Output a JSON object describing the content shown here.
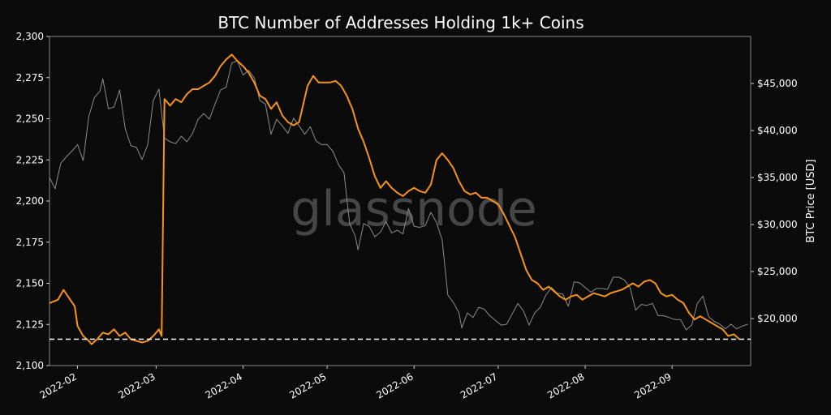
{
  "chart_data": {
    "type": "line",
    "title": "BTC Number of Addresses Holding 1k+ Coins",
    "watermark": "glassnode",
    "x_ticks": [
      "2022-02",
      "2022-03",
      "2022-04",
      "2022-05",
      "2022-06",
      "2022-07",
      "2022-08",
      "2022-09"
    ],
    "x_range": [
      "2022-01-22",
      "2022-09-29"
    ],
    "y_left": {
      "label": "",
      "range": [
        2100,
        2300
      ],
      "ticks": [
        "2,100",
        "2,125",
        "2,150",
        "2,175",
        "2,200",
        "2,225",
        "2,250",
        "2,275",
        "2,300"
      ]
    },
    "y_right": {
      "label": "BTC Price [USD]",
      "range": [
        15000,
        50000
      ],
      "ticks": [
        "$20,000",
        "$25,000",
        "$30,000",
        "$35,000",
        "$40,000",
        "$45,000"
      ],
      "tick_values": [
        20000,
        25000,
        30000,
        35000,
        40000,
        45000
      ]
    },
    "reference_line": {
      "value": 2116,
      "style": "dashed",
      "axis": "left"
    },
    "grid": false,
    "series": [
      {
        "axis": "left",
        "color": "#f7931a",
        "points": [
          [
            "2022-01-22",
            2138
          ],
          [
            "2022-01-25",
            2140
          ],
          [
            "2022-01-27",
            2146
          ],
          [
            "2022-01-29",
            2141
          ],
          [
            "2022-01-31",
            2136
          ],
          [
            "2022-02-01",
            2124
          ],
          [
            "2022-02-03",
            2118
          ],
          [
            "2022-02-05",
            2115
          ],
          [
            "2022-02-06",
            2113
          ],
          [
            "2022-02-08",
            2116
          ],
          [
            "2022-02-10",
            2120
          ],
          [
            "2022-02-12",
            2119
          ],
          [
            "2022-02-14",
            2122
          ],
          [
            "2022-02-16",
            2118
          ],
          [
            "2022-02-18",
            2120
          ],
          [
            "2022-02-20",
            2116
          ],
          [
            "2022-02-22",
            2115
          ],
          [
            "2022-02-24",
            2114
          ],
          [
            "2022-02-26",
            2115
          ],
          [
            "2022-02-28",
            2118
          ],
          [
            "2022-03-02",
            2122
          ],
          [
            "2022-03-03",
            2118
          ],
          [
            "2022-03-04",
            2262
          ],
          [
            "2022-03-06",
            2258
          ],
          [
            "2022-03-08",
            2262
          ],
          [
            "2022-03-10",
            2260
          ],
          [
            "2022-03-12",
            2265
          ],
          [
            "2022-03-14",
            2268
          ],
          [
            "2022-03-16",
            2268
          ],
          [
            "2022-03-18",
            2270
          ],
          [
            "2022-03-20",
            2272
          ],
          [
            "2022-03-22",
            2276
          ],
          [
            "2022-03-24",
            2282
          ],
          [
            "2022-03-26",
            2286
          ],
          [
            "2022-03-28",
            2289
          ],
          [
            "2022-03-30",
            2285
          ],
          [
            "2022-04-01",
            2282
          ],
          [
            "2022-04-03",
            2278
          ],
          [
            "2022-04-05",
            2272
          ],
          [
            "2022-04-07",
            2264
          ],
          [
            "2022-04-09",
            2262
          ],
          [
            "2022-04-11",
            2256
          ],
          [
            "2022-04-13",
            2260
          ],
          [
            "2022-04-15",
            2252
          ],
          [
            "2022-04-17",
            2248
          ],
          [
            "2022-04-19",
            2246
          ],
          [
            "2022-04-21",
            2248
          ],
          [
            "2022-04-24",
            2270
          ],
          [
            "2022-04-26",
            2276
          ],
          [
            "2022-04-28",
            2272
          ],
          [
            "2022-04-30",
            2272
          ],
          [
            "2022-05-02",
            2272
          ],
          [
            "2022-05-04",
            2273
          ],
          [
            "2022-05-06",
            2270
          ],
          [
            "2022-05-08",
            2264
          ],
          [
            "2022-05-10",
            2256
          ],
          [
            "2022-05-12",
            2244
          ],
          [
            "2022-05-14",
            2236
          ],
          [
            "2022-05-16",
            2226
          ],
          [
            "2022-05-18",
            2215
          ],
          [
            "2022-05-20",
            2208
          ],
          [
            "2022-05-22",
            2212
          ],
          [
            "2022-05-24",
            2208
          ],
          [
            "2022-05-26",
            2205
          ],
          [
            "2022-05-28",
            2203
          ],
          [
            "2022-05-30",
            2206
          ],
          [
            "2022-06-01",
            2208
          ],
          [
            "2022-06-03",
            2206
          ],
          [
            "2022-06-05",
            2205
          ],
          [
            "2022-06-07",
            2210
          ],
          [
            "2022-06-09",
            2225
          ],
          [
            "2022-06-11",
            2229
          ],
          [
            "2022-06-13",
            2225
          ],
          [
            "2022-06-15",
            2220
          ],
          [
            "2022-06-17",
            2212
          ],
          [
            "2022-06-19",
            2206
          ],
          [
            "2022-06-21",
            2204
          ],
          [
            "2022-06-23",
            2205
          ],
          [
            "2022-06-25",
            2202
          ],
          [
            "2022-06-27",
            2202
          ],
          [
            "2022-06-29",
            2200
          ],
          [
            "2022-07-01",
            2198
          ],
          [
            "2022-07-03",
            2192
          ],
          [
            "2022-07-05",
            2185
          ],
          [
            "2022-07-07",
            2178
          ],
          [
            "2022-07-09",
            2168
          ],
          [
            "2022-07-11",
            2158
          ],
          [
            "2022-07-13",
            2152
          ],
          [
            "2022-07-15",
            2150
          ],
          [
            "2022-07-17",
            2146
          ],
          [
            "2022-07-19",
            2148
          ],
          [
            "2022-07-21",
            2145
          ],
          [
            "2022-07-23",
            2142
          ],
          [
            "2022-07-25",
            2140
          ],
          [
            "2022-07-27",
            2142
          ],
          [
            "2022-07-29",
            2143
          ],
          [
            "2022-07-31",
            2140
          ],
          [
            "2022-08-02",
            2142
          ],
          [
            "2022-08-04",
            2144
          ],
          [
            "2022-08-06",
            2143
          ],
          [
            "2022-08-08",
            2142
          ],
          [
            "2022-08-10",
            2144
          ],
          [
            "2022-08-12",
            2145
          ],
          [
            "2022-08-14",
            2146
          ],
          [
            "2022-08-16",
            2148
          ],
          [
            "2022-08-18",
            2150
          ],
          [
            "2022-08-20",
            2148
          ],
          [
            "2022-08-22",
            2151
          ],
          [
            "2022-08-24",
            2152
          ],
          [
            "2022-08-26",
            2150
          ],
          [
            "2022-08-28",
            2144
          ],
          [
            "2022-08-30",
            2142
          ],
          [
            "2022-09-01",
            2143
          ],
          [
            "2022-09-03",
            2140
          ],
          [
            "2022-09-05",
            2138
          ],
          [
            "2022-09-07",
            2132
          ],
          [
            "2022-09-09",
            2128
          ],
          [
            "2022-09-11",
            2130
          ],
          [
            "2022-09-13",
            2128
          ],
          [
            "2022-09-15",
            2126
          ],
          [
            "2022-09-17",
            2124
          ],
          [
            "2022-09-19",
            2122
          ],
          [
            "2022-09-21",
            2118
          ],
          [
            "2022-09-23",
            2119
          ],
          [
            "2022-09-25",
            2116
          ]
        ]
      },
      {
        "axis": "right",
        "name": "BTC Price [USD]",
        "color": "#8c8c8c",
        "points": [
          [
            "2022-01-22",
            35000
          ],
          [
            "2022-01-24",
            33800
          ],
          [
            "2022-01-26",
            36500
          ],
          [
            "2022-01-28",
            37200
          ],
          [
            "2022-01-30",
            37800
          ],
          [
            "2022-02-01",
            38500
          ],
          [
            "2022-02-03",
            36800
          ],
          [
            "2022-02-05",
            41500
          ],
          [
            "2022-02-07",
            43500
          ],
          [
            "2022-02-09",
            44200
          ],
          [
            "2022-02-10",
            45500
          ],
          [
            "2022-02-12",
            42300
          ],
          [
            "2022-02-14",
            42500
          ],
          [
            "2022-02-16",
            44300
          ],
          [
            "2022-02-18",
            40200
          ],
          [
            "2022-02-20",
            38400
          ],
          [
            "2022-02-22",
            38200
          ],
          [
            "2022-02-24",
            36900
          ],
          [
            "2022-02-26",
            38500
          ],
          [
            "2022-02-28",
            43200
          ],
          [
            "2022-03-02",
            44400
          ],
          [
            "2022-03-04",
            39200
          ],
          [
            "2022-03-06",
            38800
          ],
          [
            "2022-03-08",
            38600
          ],
          [
            "2022-03-10",
            39400
          ],
          [
            "2022-03-12",
            38800
          ],
          [
            "2022-03-14",
            39700
          ],
          [
            "2022-03-16",
            41200
          ],
          [
            "2022-03-18",
            41800
          ],
          [
            "2022-03-20",
            41200
          ],
          [
            "2022-03-22",
            42800
          ],
          [
            "2022-03-24",
            44300
          ],
          [
            "2022-03-26",
            44600
          ],
          [
            "2022-03-28",
            47200
          ],
          [
            "2022-03-30",
            47400
          ],
          [
            "2022-04-01",
            45900
          ],
          [
            "2022-04-03",
            46400
          ],
          [
            "2022-04-05",
            45600
          ],
          [
            "2022-04-07",
            43200
          ],
          [
            "2022-04-09",
            42800
          ],
          [
            "2022-04-11",
            39600
          ],
          [
            "2022-04-13",
            41200
          ],
          [
            "2022-04-15",
            40500
          ],
          [
            "2022-04-17",
            39700
          ],
          [
            "2022-04-19",
            41300
          ],
          [
            "2022-04-21",
            40500
          ],
          [
            "2022-04-23",
            39600
          ],
          [
            "2022-04-25",
            40400
          ],
          [
            "2022-04-27",
            38900
          ],
          [
            "2022-04-29",
            38500
          ],
          [
            "2022-05-01",
            38500
          ],
          [
            "2022-05-03",
            37800
          ],
          [
            "2022-05-05",
            36400
          ],
          [
            "2022-05-07",
            35500
          ],
          [
            "2022-05-09",
            30100
          ],
          [
            "2022-05-11",
            28800
          ],
          [
            "2022-05-12",
            27300
          ],
          [
            "2022-05-14",
            30100
          ],
          [
            "2022-05-16",
            29800
          ],
          [
            "2022-05-18",
            28700
          ],
          [
            "2022-05-20",
            29200
          ],
          [
            "2022-05-22",
            30300
          ],
          [
            "2022-05-24",
            29100
          ],
          [
            "2022-05-26",
            29400
          ],
          [
            "2022-05-28",
            29000
          ],
          [
            "2022-05-30",
            31700
          ],
          [
            "2022-06-01",
            29800
          ],
          [
            "2022-06-03",
            29700
          ],
          [
            "2022-06-05",
            29900
          ],
          [
            "2022-06-07",
            31300
          ],
          [
            "2022-06-09",
            30200
          ],
          [
            "2022-06-11",
            28400
          ],
          [
            "2022-06-13",
            22500
          ],
          [
            "2022-06-15",
            21700
          ],
          [
            "2022-06-17",
            20600
          ],
          [
            "2022-06-18",
            19000
          ],
          [
            "2022-06-20",
            20600
          ],
          [
            "2022-06-22",
            20100
          ],
          [
            "2022-06-24",
            21200
          ],
          [
            "2022-06-26",
            21000
          ],
          [
            "2022-06-28",
            20300
          ],
          [
            "2022-06-30",
            19800
          ],
          [
            "2022-07-02",
            19300
          ],
          [
            "2022-07-04",
            19400
          ],
          [
            "2022-07-06",
            20500
          ],
          [
            "2022-07-08",
            21600
          ],
          [
            "2022-07-10",
            20800
          ],
          [
            "2022-07-12",
            19300
          ],
          [
            "2022-07-14",
            20600
          ],
          [
            "2022-07-16",
            21200
          ],
          [
            "2022-07-18",
            22500
          ],
          [
            "2022-07-20",
            23300
          ],
          [
            "2022-07-22",
            22700
          ],
          [
            "2022-07-24",
            22600
          ],
          [
            "2022-07-26",
            21300
          ],
          [
            "2022-07-28",
            23900
          ],
          [
            "2022-07-30",
            23800
          ],
          [
            "2022-08-01",
            23300
          ],
          [
            "2022-08-03",
            22800
          ],
          [
            "2022-08-05",
            23200
          ],
          [
            "2022-08-07",
            23200
          ],
          [
            "2022-08-09",
            23100
          ],
          [
            "2022-08-11",
            24400
          ],
          [
            "2022-08-13",
            24400
          ],
          [
            "2022-08-15",
            24100
          ],
          [
            "2022-08-17",
            23300
          ],
          [
            "2022-08-19",
            20900
          ],
          [
            "2022-08-21",
            21500
          ],
          [
            "2022-08-23",
            21400
          ],
          [
            "2022-08-25",
            21600
          ],
          [
            "2022-08-27",
            20300
          ],
          [
            "2022-08-29",
            20300
          ],
          [
            "2022-08-31",
            20100
          ],
          [
            "2022-09-02",
            19900
          ],
          [
            "2022-09-04",
            19900
          ],
          [
            "2022-09-06",
            18800
          ],
          [
            "2022-09-08",
            19300
          ],
          [
            "2022-09-10",
            21600
          ],
          [
            "2022-09-12",
            22400
          ],
          [
            "2022-09-14",
            20200
          ],
          [
            "2022-09-16",
            19700
          ],
          [
            "2022-09-18",
            19400
          ],
          [
            "2022-09-20",
            18900
          ],
          [
            "2022-09-22",
            19400
          ],
          [
            "2022-09-24",
            18900
          ],
          [
            "2022-09-26",
            19200
          ],
          [
            "2022-09-28",
            19400
          ]
        ]
      }
    ]
  }
}
